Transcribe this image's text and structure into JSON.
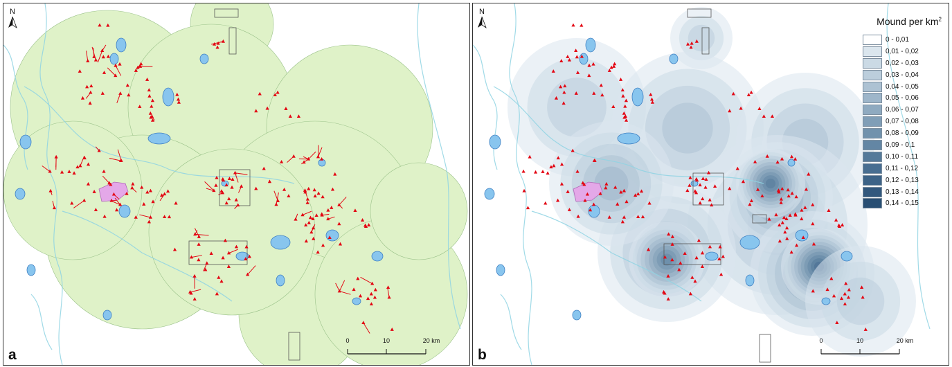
{
  "panels": [
    {
      "letter": "a",
      "north_label": "N",
      "scale_labels": [
        "0",
        "10",
        "20 km"
      ]
    },
    {
      "letter": "b",
      "north_label": "N",
      "scale_labels": [
        "0",
        "10",
        "20 km"
      ]
    }
  ],
  "legend": {
    "title": "Mound per km",
    "title_sup": "2",
    "classes": [
      {
        "label": "0 - 0,01",
        "color": "#ffffff"
      },
      {
        "label": "0,01 - 0,02",
        "color": "#dbe6ee"
      },
      {
        "label": "0,02 - 0,03",
        "color": "#cbdae5"
      },
      {
        "label": "0,03 - 0,04",
        "color": "#bccedc"
      },
      {
        "label": "0,04 - 0,05",
        "color": "#adc2d3"
      },
      {
        "label": "0,05 - 0,06",
        "color": "#9eb6ca"
      },
      {
        "label": "0,06 - 0,07",
        "color": "#8faac0"
      },
      {
        "label": "0,07 - 0,08",
        "color": "#809eb7"
      },
      {
        "label": "0,08 - 0,09",
        "color": "#7192ad"
      },
      {
        "label": "0,09 - 0,1",
        "color": "#6386a4"
      },
      {
        "label": "0,10 - 0,11",
        "color": "#557a9a"
      },
      {
        "label": "0,11 - 0,12",
        "color": "#486e91"
      },
      {
        "label": "0,12 - 0,13",
        "color": "#3d6387"
      },
      {
        "label": "0,13 - 0,14",
        "color": "#32587d"
      },
      {
        "label": "0,14 - 0,15",
        "color": "#284e73"
      }
    ]
  },
  "colors": {
    "buffer_fill": "#dff2c8",
    "buffer_stroke": "#9bc28a",
    "lake_fill": "#88c5ee",
    "lake_stroke": "#3d7fc2",
    "river": "#8fd3e3",
    "mound": "#e30613",
    "site_fill": "#e4a8e8"
  }
}
